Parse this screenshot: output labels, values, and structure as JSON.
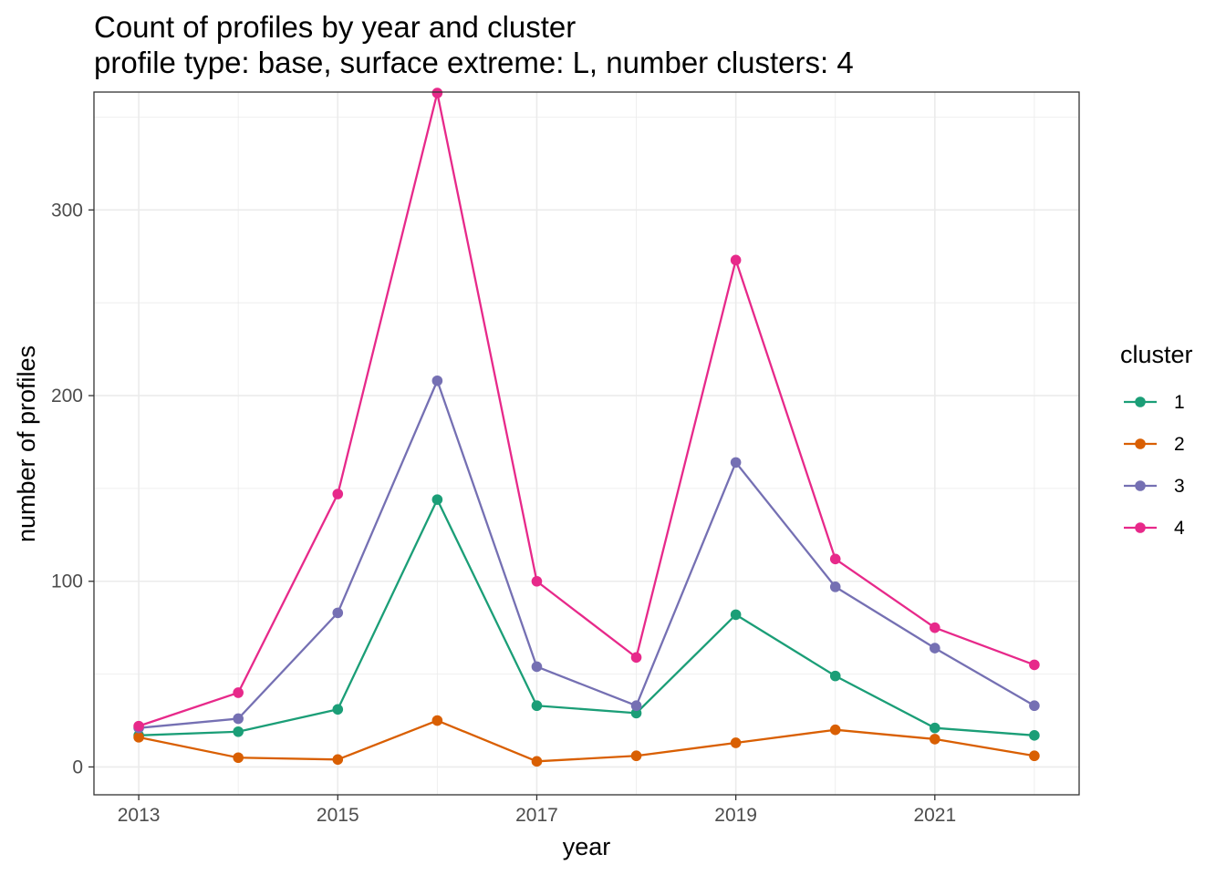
{
  "chart_data": {
    "type": "line",
    "title": "Count of profiles by year and cluster",
    "subtitle": "profile type: base, surface extreme: L, number clusters: 4",
    "xlabel": "year",
    "ylabel": "number of profiles",
    "x": [
      2013,
      2014,
      2015,
      2016,
      2017,
      2018,
      2019,
      2020,
      2021,
      2022
    ],
    "xlim": [
      2012.55,
      2022.45
    ],
    "ylim": [
      -15,
      363.5
    ],
    "x_ticks": [
      2013,
      2015,
      2017,
      2019,
      2021
    ],
    "y_ticks": [
      0,
      100,
      200,
      300
    ],
    "x_tick_labels": [
      "2013",
      "2015",
      "2017",
      "2019",
      "2021"
    ],
    "y_tick_labels": [
      "0",
      "100",
      "200",
      "300"
    ],
    "grid": true,
    "legend": {
      "title": "cluster",
      "position": "right"
    },
    "series": [
      {
        "name": "1",
        "color": "#1b9e77",
        "values": [
          17,
          19,
          31,
          144,
          33,
          29,
          82,
          49,
          21,
          17
        ]
      },
      {
        "name": "2",
        "color": "#d95f02",
        "values": [
          16,
          5,
          4,
          25,
          3,
          6,
          13,
          20,
          15,
          6
        ]
      },
      {
        "name": "3",
        "color": "#7570b3",
        "values": [
          21,
          26,
          83,
          208,
          54,
          33,
          164,
          97,
          64,
          33
        ]
      },
      {
        "name": "4",
        "color": "#e7298a",
        "values": [
          22,
          40,
          147,
          363,
          100,
          59,
          273,
          112,
          75,
          55
        ]
      }
    ]
  }
}
